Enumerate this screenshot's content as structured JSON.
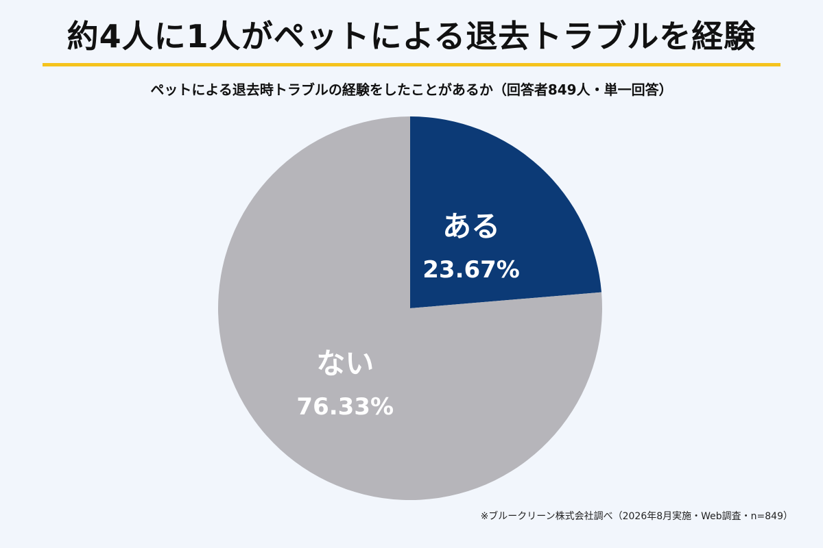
{
  "header": {
    "title": "約4人に1人がペットによる退去トラブルを経験",
    "subtitle": "ペットによる退去時トラブルの経験をしたことがあるか（回答者849人・単一回答）"
  },
  "footer": {
    "source": "※ブルークリーン株式会社調べ（2026年8月実施・Web調査・n=849）"
  },
  "colors": {
    "accent_underline": "#f5c31c",
    "slice_yes": "#0c3a76",
    "slice_no": "#b6b5ba",
    "background": "#f2f6fc"
  },
  "chart_data": {
    "type": "pie",
    "title": "ペットによる退去時トラブルの経験をしたことがあるか（回答者849人・単一回答）",
    "start_angle": "12 o'clock",
    "direction": "clockwise",
    "legend": "none",
    "categories": [
      "ある",
      "ない"
    ],
    "values": [
      23.67,
      76.33
    ],
    "value_labels": [
      "23.67%",
      "76.33%"
    ],
    "colors": [
      "#0c3a76",
      "#b6b5ba"
    ]
  }
}
